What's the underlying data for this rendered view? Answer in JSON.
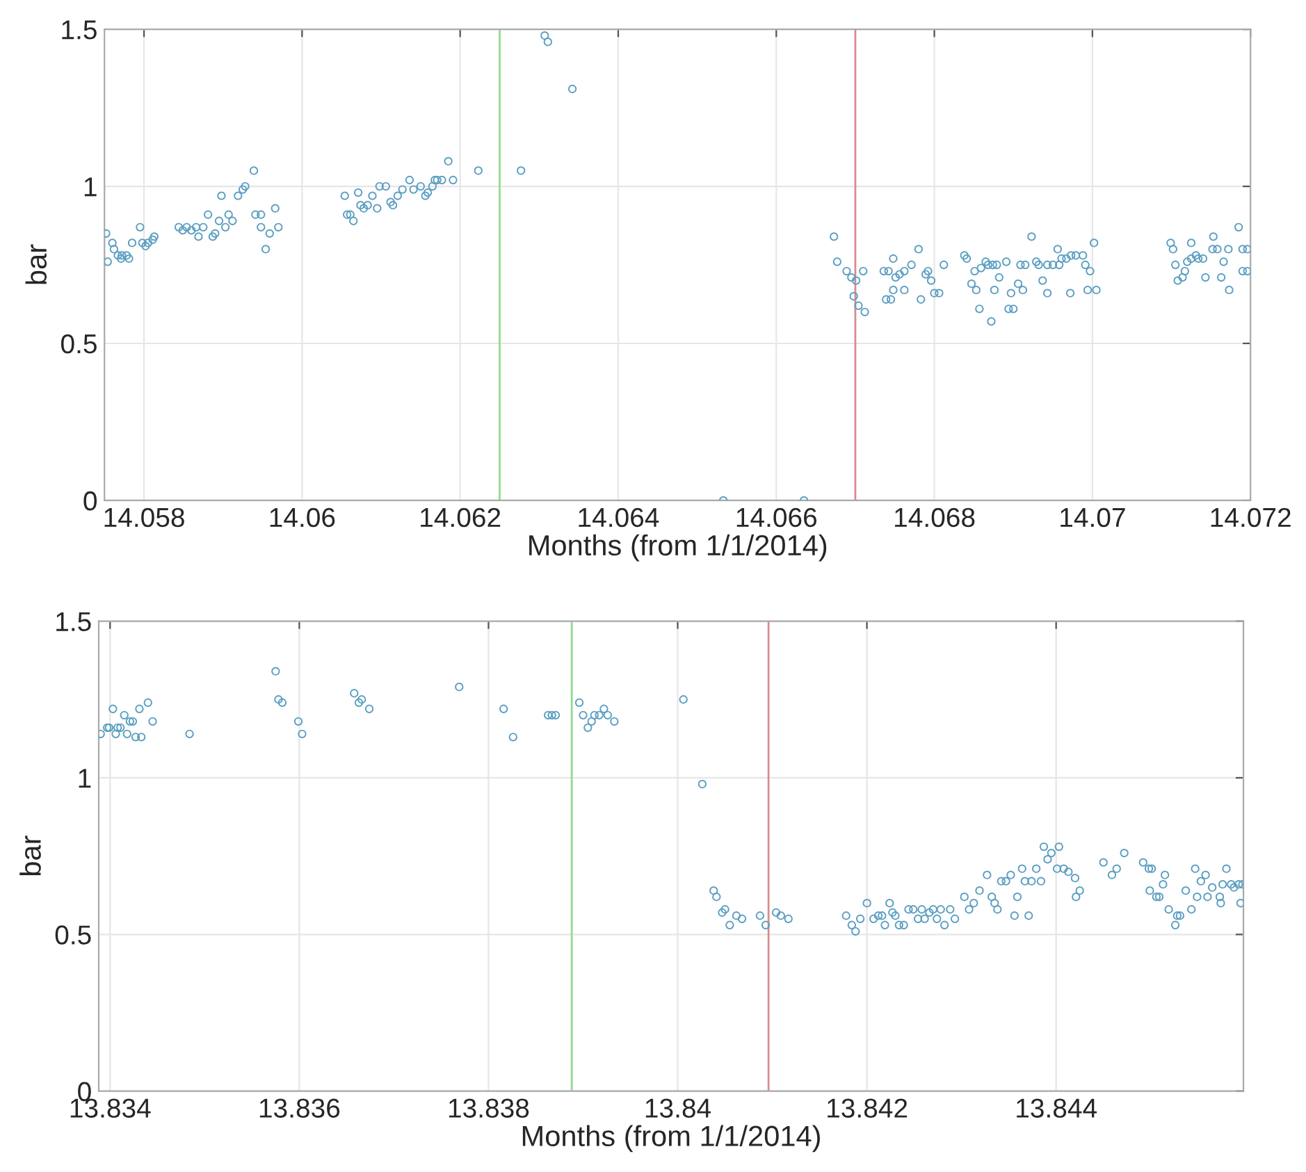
{
  "chart_data": [
    {
      "type": "scatter",
      "xlabel": "Months (from 1/1/2014)",
      "ylabel": "bar",
      "xlim": [
        14.0575,
        14.072
      ],
      "ylim": [
        0,
        1.5
      ],
      "xticks": [
        14.058,
        14.06,
        14.062,
        14.064,
        14.066,
        14.068,
        14.07,
        14.072
      ],
      "yticks": [
        0,
        0.5,
        1,
        1.5
      ],
      "grid": true,
      "marker": "circle",
      "ref_lines": [
        {
          "axis": "x",
          "value": 14.0625,
          "color": "#8fdc8f"
        },
        {
          "axis": "x",
          "value": 14.067,
          "color": "#d98c8c"
        }
      ],
      "series": [
        {
          "color": "#5b9fc2",
          "x": [
            14.05752,
            14.05754,
            14.0576,
            14.05762,
            14.05767,
            14.05771,
            14.05772,
            14.05778,
            14.05781,
            14.05785,
            14.05795,
            14.05798,
            14.05802,
            14.05805,
            14.05811,
            14.05813,
            14.05844,
            14.05849,
            14.05854,
            14.0586,
            14.05866,
            14.05869,
            14.05875,
            14.05881,
            14.05887,
            14.0589,
            14.05895,
            14.05898,
            14.05903,
            14.05907,
            14.05912,
            14.05919,
            14.05925,
            14.05928,
            14.05939,
            14.05941,
            14.05948,
            14.05954,
            14.05948,
            14.05959,
            14.05966,
            14.0597,
            14.06054,
            14.06057,
            14.06061,
            14.06065,
            14.06071,
            14.06074,
            14.06078,
            14.06083,
            14.06089,
            14.06095,
            14.06098,
            14.06106,
            14.06112,
            14.06115,
            14.06121,
            14.06127,
            14.06136,
            14.06141,
            14.0615,
            14.06156,
            14.06159,
            14.06165,
            14.06168,
            14.06171,
            14.06177,
            14.06185,
            14.06191,
            14.06223,
            14.06277,
            14.06307,
            14.06311,
            14.06342,
            14.06533,
            14.06635,
            14.06673,
            14.06677,
            14.06689,
            14.06695,
            14.06701,
            14.0671,
            14.06698,
            14.06704,
            14.06712,
            14.06736,
            14.06742,
            14.06748,
            14.06751,
            14.06756,
            14.06762,
            14.06771,
            14.06748,
            14.06762,
            14.06739,
            14.06745,
            14.0678,
            14.06783,
            14.06789,
            14.06792,
            14.06796,
            14.068,
            14.06806,
            14.06812,
            14.06838,
            14.06841,
            14.06847,
            14.06853,
            14.06851,
            14.06859,
            14.06865,
            14.06868,
            14.06874,
            14.06879,
            14.06882,
            14.06876,
            14.06891,
            14.06897,
            14.06894,
            14.069,
            14.06872,
            14.06857,
            14.06909,
            14.06915,
            14.06906,
            14.06912,
            14.06923,
            14.06929,
            14.06932,
            14.06937,
            14.06943,
            14.06943,
            14.0695,
            14.06956,
            14.06958,
            14.06961,
            14.06967,
            14.06973,
            14.06979,
            14.06988,
            14.06991,
            14.06997,
            14.07002,
            14.06994,
            14.07005,
            14.06972,
            14.07099,
            14.07102,
            14.07105,
            14.07108,
            14.07114,
            14.07117,
            14.0712,
            14.07125,
            14.07125,
            14.07131,
            14.07134,
            14.0714,
            14.07143,
            14.07153,
            14.07152,
            14.07158,
            14.07163,
            14.07166,
            14.07172,
            14.07173,
            14.07185,
            14.0719,
            14.07196,
            14.0719,
            14.07196
          ],
          "values": [
            0.85,
            0.76,
            0.82,
            0.8,
            0.78,
            0.77,
            0.78,
            0.78,
            0.77,
            0.82,
            0.87,
            0.82,
            0.81,
            0.82,
            0.83,
            0.84,
            0.87,
            0.86,
            0.87,
            0.86,
            0.87,
            0.84,
            0.87,
            0.91,
            0.84,
            0.85,
            0.89,
            0.97,
            0.87,
            0.91,
            0.89,
            0.97,
            0.99,
            1.0,
            1.05,
            0.91,
            0.91,
            0.8,
            0.87,
            0.85,
            0.93,
            0.87,
            0.97,
            0.91,
            0.91,
            0.89,
            0.98,
            0.94,
            0.93,
            0.94,
            0.97,
            0.93,
            1.0,
            1.0,
            0.95,
            0.94,
            0.97,
            0.99,
            1.02,
            0.99,
            1.0,
            0.97,
            0.98,
            1.0,
            1.02,
            1.02,
            1.02,
            1.08,
            1.02,
            1.05,
            1.05,
            1.48,
            1.46,
            1.31,
            0,
            0,
            0.84,
            0.76,
            0.73,
            0.71,
            0.7,
            0.73,
            0.65,
            0.62,
            0.6,
            0.73,
            0.73,
            0.77,
            0.71,
            0.72,
            0.73,
            0.75,
            0.67,
            0.67,
            0.64,
            0.64,
            0.8,
            0.64,
            0.72,
            0.73,
            0.7,
            0.66,
            0.66,
            0.75,
            0.78,
            0.77,
            0.69,
            0.67,
            0.73,
            0.74,
            0.76,
            0.75,
            0.75,
            0.75,
            0.71,
            0.67,
            0.76,
            0.66,
            0.61,
            0.61,
            0.57,
            0.61,
            0.75,
            0.75,
            0.69,
            0.67,
            0.84,
            0.76,
            0.75,
            0.7,
            0.66,
            0.75,
            0.75,
            0.8,
            0.75,
            0.77,
            0.77,
            0.78,
            0.78,
            0.78,
            0.75,
            0.73,
            0.82,
            0.67,
            0.67,
            0.66,
            0.82,
            0.8,
            0.75,
            0.7,
            0.71,
            0.73,
            0.76,
            0.82,
            0.77,
            0.78,
            0.77,
            0.77,
            0.71,
            0.84,
            0.8,
            0.8,
            0.71,
            0.76,
            0.8,
            0.67,
            0.87,
            0.8,
            0.8,
            0.73,
            0.73
          ]
        }
      ]
    },
    {
      "type": "scatter",
      "xlabel": "Months (from 1/1/2014)",
      "ylabel": "bar",
      "xlim": [
        13.83388,
        13.84598
      ],
      "ylim": [
        0,
        1.5
      ],
      "xticks": [
        13.834,
        13.836,
        13.838,
        13.84,
        13.842,
        13.844
      ],
      "yticks": [
        0,
        0.5,
        1,
        1.5
      ],
      "grid": true,
      "marker": "circle",
      "ref_lines": [
        {
          "axis": "x",
          "value": 13.83888,
          "color": "#8fdc8f"
        },
        {
          "axis": "x",
          "value": 13.84096,
          "color": "#d98c8c"
        }
      ],
      "series": [
        {
          "color": "#5b9fc2",
          "x": [
            13.8339,
            13.83397,
            13.83399,
            13.83403,
            13.83406,
            13.83408,
            13.83411,
            13.83415,
            13.83418,
            13.83421,
            13.83424,
            13.83427,
            13.83431,
            13.83433,
            13.8344,
            13.83445,
            13.83484,
            13.83575,
            13.83578,
            13.83582,
            13.83599,
            13.83603,
            13.83658,
            13.83663,
            13.83666,
            13.83674,
            13.83769,
            13.83816,
            13.83826,
            13.83863,
            13.83867,
            13.83871,
            13.83896,
            13.839,
            13.83905,
            13.83909,
            13.83912,
            13.83917,
            13.83922,
            13.83926,
            13.83933,
            13.84006,
            13.84026,
            13.84038,
            13.84041,
            13.84047,
            13.8405,
            13.84055,
            13.84062,
            13.84068,
            13.84087,
            13.84093,
            13.84104,
            13.84109,
            13.84117,
            13.84178,
            13.84184,
            13.84188,
            13.84193,
            13.842,
            13.84207,
            13.84212,
            13.84216,
            13.84219,
            13.84224,
            13.84227,
            13.8423,
            13.84234,
            13.84239,
            13.84244,
            13.84249,
            13.84254,
            13.84258,
            13.84261,
            13.84266,
            13.8427,
            13.84274,
            13.84278,
            13.84282,
            13.84288,
            13.84293,
            13.84303,
            13.84308,
            13.84313,
            13.84319,
            13.84327,
            13.84332,
            13.84335,
            13.84338,
            13.84342,
            13.84347,
            13.84352,
            13.84356,
            13.84359,
            13.84364,
            13.84367,
            13.84371,
            13.84374,
            13.84379,
            13.84384,
            13.84387,
            13.84391,
            13.84395,
            13.84403,
            13.84401,
            13.84408,
            13.84413,
            13.8442,
            13.84421,
            13.84425,
            13.8445,
            13.84459,
            13.84464,
            13.84472,
            13.84492,
            13.84498,
            13.84501,
            13.84499,
            13.84506,
            13.84509,
            13.84513,
            13.84515,
            13.84519,
            13.84526,
            13.84528,
            13.84531,
            13.84537,
            13.84543,
            13.84547,
            13.84549,
            13.84553,
            13.84558,
            13.8456,
            13.84565,
            13.84573,
            13.84574,
            13.84576,
            13.8458,
            13.84585,
            13.84588,
            13.84593,
            13.84597,
            13.84595
          ],
          "values": [
            1.14,
            1.16,
            1.16,
            1.22,
            1.14,
            1.16,
            1.16,
            1.2,
            1.14,
            1.18,
            1.18,
            1.13,
            1.22,
            1.13,
            1.24,
            1.18,
            1.14,
            1.34,
            1.25,
            1.24,
            1.18,
            1.14,
            1.27,
            1.24,
            1.25,
            1.22,
            1.29,
            1.22,
            1.13,
            1.2,
            1.2,
            1.2,
            1.24,
            1.2,
            1.16,
            1.18,
            1.2,
            1.2,
            1.22,
            1.2,
            1.18,
            1.25,
            0.98,
            0.64,
            0.62,
            0.57,
            0.58,
            0.53,
            0.56,
            0.55,
            0.56,
            0.53,
            0.57,
            0.56,
            0.55,
            0.56,
            0.53,
            0.51,
            0.55,
            0.6,
            0.55,
            0.56,
            0.56,
            0.53,
            0.6,
            0.57,
            0.56,
            0.53,
            0.53,
            0.58,
            0.58,
            0.55,
            0.58,
            0.55,
            0.57,
            0.58,
            0.55,
            0.58,
            0.53,
            0.58,
            0.55,
            0.62,
            0.58,
            0.6,
            0.64,
            0.69,
            0.62,
            0.6,
            0.58,
            0.67,
            0.67,
            0.69,
            0.56,
            0.62,
            0.71,
            0.67,
            0.56,
            0.67,
            0.71,
            0.67,
            0.78,
            0.74,
            0.76,
            0.78,
            0.71,
            0.71,
            0.7,
            0.68,
            0.62,
            0.64,
            0.73,
            0.69,
            0.71,
            0.76,
            0.73,
            0.71,
            0.71,
            0.64,
            0.62,
            0.62,
            0.66,
            0.69,
            0.58,
            0.53,
            0.56,
            0.56,
            0.64,
            0.58,
            0.71,
            0.62,
            0.67,
            0.69,
            0.62,
            0.65,
            0.62,
            0.6,
            0.66,
            0.71,
            0.66,
            0.65,
            0.66,
            0.66,
            0.6
          ]
        }
      ]
    }
  ]
}
